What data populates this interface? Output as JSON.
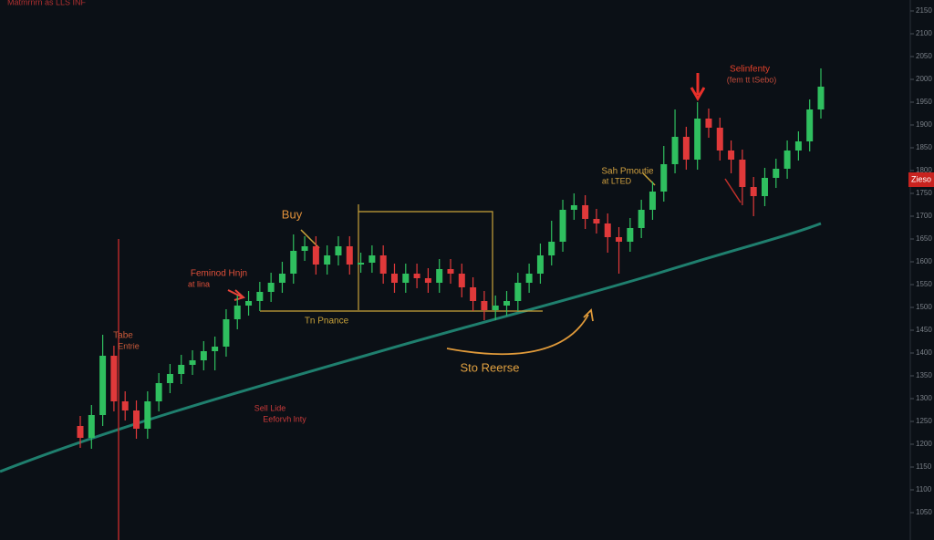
{
  "chart_data": {
    "type": "candlestick",
    "open": [
      1240,
      1214,
      1264,
      1394,
      1294,
      1274,
      1234,
      1294,
      1334,
      1354,
      1374,
      1384,
      1404,
      1414,
      1474,
      1504,
      1514,
      1534,
      1554,
      1574,
      1624,
      1634,
      1594,
      1614,
      1634,
      1594,
      1598,
      1614,
      1574,
      1554,
      1574,
      1564,
      1554,
      1584,
      1574,
      1544,
      1514,
      1494,
      1504,
      1514,
      1554,
      1574,
      1614,
      1644,
      1714,
      1724,
      1694,
      1684,
      1654,
      1644,
      1674,
      1714,
      1754,
      1814,
      1874,
      1824,
      1914,
      1894,
      1844,
      1824,
      1764,
      1744,
      1784,
      1804,
      1844,
      1864,
      1934
    ],
    "high": [
      1262,
      1286,
      1440,
      1416,
      1316,
      1296,
      1316,
      1356,
      1376,
      1396,
      1406,
      1426,
      1436,
      1496,
      1526,
      1536,
      1556,
      1576,
      1600,
      1660,
      1656,
      1656,
      1636,
      1656,
      1656,
      1620,
      1636,
      1636,
      1596,
      1596,
      1596,
      1586,
      1606,
      1606,
      1596,
      1566,
      1536,
      1526,
      1536,
      1576,
      1596,
      1640,
      1690,
      1736,
      1750,
      1746,
      1716,
      1706,
      1676,
      1696,
      1736,
      1776,
      1854,
      1934,
      1896,
      1950,
      1936,
      1916,
      1866,
      1846,
      1786,
      1806,
      1826,
      1866,
      1886,
      1956,
      2024
    ],
    "low": [
      1192,
      1190,
      1240,
      1272,
      1252,
      1212,
      1212,
      1272,
      1312,
      1332,
      1352,
      1362,
      1362,
      1392,
      1452,
      1482,
      1492,
      1512,
      1532,
      1552,
      1602,
      1572,
      1572,
      1592,
      1572,
      1576,
      1576,
      1552,
      1532,
      1532,
      1542,
      1532,
      1532,
      1552,
      1522,
      1492,
      1472,
      1472,
      1482,
      1492,
      1532,
      1552,
      1592,
      1622,
      1692,
      1672,
      1662,
      1620,
      1574,
      1622,
      1652,
      1692,
      1732,
      1794,
      1802,
      1802,
      1872,
      1822,
      1794,
      1724,
      1700,
      1722,
      1762,
      1782,
      1822,
      1842,
      1914
    ],
    "close": [
      1214,
      1264,
      1394,
      1294,
      1274,
      1234,
      1294,
      1334,
      1354,
      1374,
      1384,
      1404,
      1414,
      1474,
      1504,
      1514,
      1534,
      1554,
      1574,
      1624,
      1634,
      1594,
      1614,
      1634,
      1594,
      1598,
      1614,
      1574,
      1554,
      1574,
      1564,
      1554,
      1584,
      1574,
      1544,
      1514,
      1494,
      1504,
      1514,
      1554,
      1574,
      1614,
      1644,
      1714,
      1724,
      1694,
      1684,
      1654,
      1644,
      1674,
      1714,
      1754,
      1814,
      1874,
      1824,
      1914,
      1894,
      1844,
      1824,
      1764,
      1744,
      1784,
      1804,
      1844,
      1864,
      1934,
      1984
    ],
    "up_color": "#2fbf5f",
    "down_color": "#e0393a",
    "ylim": [
      990,
      2174
    ],
    "yticks": [
      1050,
      1100,
      1150,
      1200,
      1250,
      1300,
      1350,
      1400,
      1450,
      1500,
      1550,
      1600,
      1650,
      1700,
      1750,
      1800,
      1850,
      1900,
      1950,
      2000,
      2050,
      2100,
      2150
    ],
    "annotations": [
      "Matmrnrn as LLS INF",
      "Buy",
      "Feminod Hnjn",
      "at lina",
      "Tabe",
      "Entrie",
      "Sell Lide",
      "Eeforvh lnty",
      "Tn Pnance",
      "Sto Reerse",
      "Sah Pmoutie",
      "at LTED",
      "Selinfenty",
      "(fem tt tSebo)"
    ],
    "price_label": "Zieso"
  }
}
